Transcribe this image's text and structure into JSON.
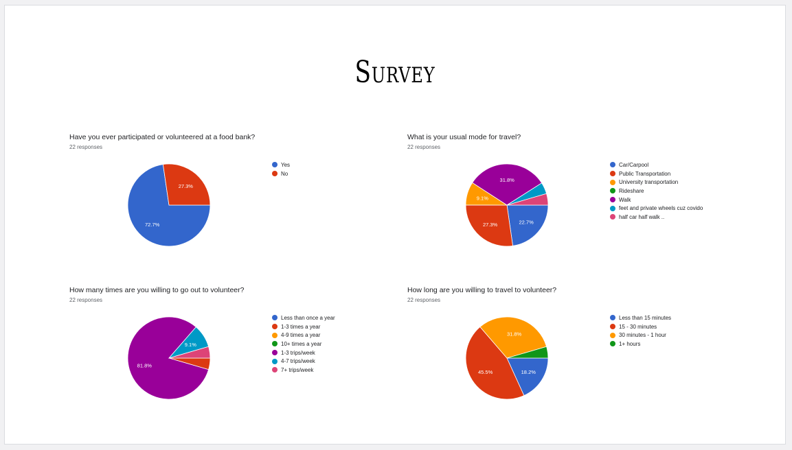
{
  "slide": {
    "title": "Survey"
  },
  "chart_data": [
    {
      "type": "pie",
      "title": "Have you ever participated or volunteered at a food bank?",
      "responses_label": "22 responses",
      "categories": [
        "Yes",
        "No"
      ],
      "values": [
        72.7,
        27.3
      ],
      "slice_labels": [
        "72.7%",
        "27.3%"
      ],
      "colors": [
        "#3366cc",
        "#dc3912"
      ],
      "legend_position": "right"
    },
    {
      "type": "pie",
      "title": "What is your usual mode for travel?",
      "responses_label": "22 responses",
      "categories": [
        "Car/Carpool",
        "Public Transportation",
        "University transportation",
        "Rideshare",
        "Walk",
        "feet and private wheels cuz covido",
        "half car half walk .."
      ],
      "values": [
        22.7,
        27.3,
        9.1,
        0,
        31.8,
        4.5,
        4.5
      ],
      "slice_labels": [
        "22.7%",
        "27.3%",
        "9.1%",
        "",
        "31.8%",
        "",
        ""
      ],
      "colors": [
        "#3366cc",
        "#dc3912",
        "#ff9900",
        "#109618",
        "#990099",
        "#0099c6",
        "#dd4477"
      ],
      "legend_position": "right"
    },
    {
      "type": "pie",
      "title": "How many times are you willing to go out to volunteer?",
      "responses_label": "22 responses",
      "categories": [
        "Less than once a year",
        "1-3 times a year",
        "4-9 times a year",
        "10+ times a year",
        "1-3 trips/week",
        "4-7 trips/week",
        "7+ trips/week"
      ],
      "values": [
        0,
        4.5,
        0,
        0,
        81.8,
        9.1,
        4.5
      ],
      "slice_labels": [
        "",
        "",
        "",
        "",
        "81.8%",
        "9.1%",
        ""
      ],
      "colors": [
        "#3366cc",
        "#dc3912",
        "#ff9900",
        "#109618",
        "#990099",
        "#0099c6",
        "#dd4477"
      ],
      "legend_position": "right"
    },
    {
      "type": "pie",
      "title": "How long are you willing to travel to volunteer?",
      "responses_label": "22 responses",
      "categories": [
        "Less than 15 minutes",
        "15 - 30 minutes",
        "30 minutes - 1 hour",
        "1+ hours"
      ],
      "values": [
        18.2,
        45.5,
        31.8,
        4.5
      ],
      "slice_labels": [
        "18.2%",
        "45.5%",
        "31.8%",
        ""
      ],
      "colors": [
        "#3366cc",
        "#dc3912",
        "#ff9900",
        "#109618"
      ],
      "legend_position": "right"
    }
  ]
}
